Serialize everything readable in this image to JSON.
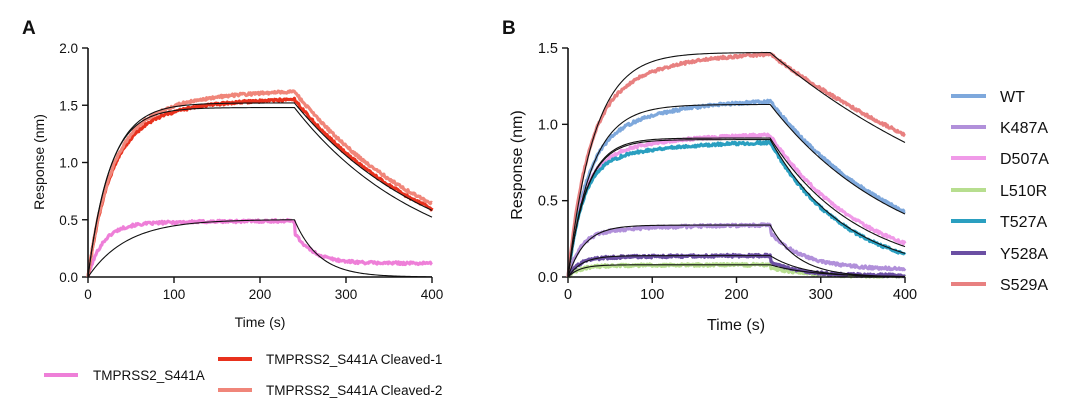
{
  "chart_data": [
    {
      "panel": "A",
      "type": "line",
      "xlabel": "Time (s)",
      "ylabel": "Response (nm)",
      "xlim": [
        0,
        400
      ],
      "ylim": [
        0,
        2.0
      ],
      "xticks": [
        0,
        100,
        200,
        300,
        400
      ],
      "yticks": [
        0.0,
        0.5,
        1.0,
        1.5,
        2.0
      ],
      "ytick_labels": [
        "0.0",
        "0.5",
        "1.0",
        "1.5",
        "2.0"
      ],
      "association_end": 240,
      "legend_position": "bottom",
      "series": [
        {
          "name": "TMPRSS2_S441A",
          "color": "#EE7FD8",
          "fast": 0.45,
          "fast_rate": 0.06,
          "slow": 0.04,
          "slow_rate": 0.01,
          "plateau": 0.49,
          "fit_plateau": 0.5,
          "fit_rate": 0.022,
          "dissoc_rate": 0.035,
          "drop": 0.1,
          "dissoc_rate_data": 0.045,
          "dissoc_floor": 0.12
        },
        {
          "name": "TMPRSS2_S441A Cleaved-1",
          "color": "#E8311D",
          "fast": 1.2,
          "fast_rate": 0.04,
          "slow": 0.35,
          "slow_rate": 0.012,
          "plateau": 1.55,
          "fit_plateau": 1.48,
          "fit_rate": 0.04,
          "dissoc_rate": 0.0065,
          "drop": 0.0,
          "dissoc_rate_data": 0.006,
          "dissoc_floor": 0.0
        },
        {
          "name": "TMPRSS2_S441A Cleaved-2",
          "color": "#F0867A",
          "fast": 1.2,
          "fast_rate": 0.04,
          "slow": 0.42,
          "slow_rate": 0.012,
          "plateau": 1.62,
          "fit_plateau": 1.52,
          "fit_rate": 0.038,
          "dissoc_rate": 0.006,
          "drop": 0.0,
          "dissoc_rate_data": 0.0058,
          "dissoc_floor": 0.0
        }
      ]
    },
    {
      "panel": "B",
      "type": "line",
      "xlabel": "Time (s)",
      "ylabel": "Response (nm)",
      "xlim": [
        0,
        400
      ],
      "ylim": [
        0,
        1.5
      ],
      "xticks": [
        0,
        100,
        200,
        300,
        400
      ],
      "yticks": [
        0.0,
        0.5,
        1.0,
        1.5
      ],
      "ytick_labels": [
        "0.0",
        "0.5",
        "1.0",
        "1.5"
      ],
      "association_end": 240,
      "legend_position": "right",
      "series": [
        {
          "name": "WT",
          "color": "#7EA8DC",
          "fast": 0.8,
          "fast_rate": 0.05,
          "slow": 0.35,
          "slow_rate": 0.012,
          "plateau": 1.15,
          "fit_plateau": 1.13,
          "fit_rate": 0.035,
          "dissoc_rate": 0.0063,
          "drop": 0.0,
          "dissoc_rate_data": 0.0062,
          "dissoc_floor": 0.0
        },
        {
          "name": "K487A",
          "color": "#B190DA",
          "fast": 0.28,
          "fast_rate": 0.07,
          "slow": 0.06,
          "slow_rate": 0.01,
          "plateau": 0.34,
          "fit_plateau": 0.34,
          "fit_rate": 0.05,
          "dissoc_rate": 0.03,
          "drop": 0.05,
          "dissoc_rate_data": 0.025,
          "dissoc_floor": 0.05
        },
        {
          "name": "D507A",
          "color": "#F09AE8",
          "fast": 0.72,
          "fast_rate": 0.06,
          "slow": 0.22,
          "slow_rate": 0.012,
          "plateau": 0.93,
          "fit_plateau": 0.91,
          "fit_rate": 0.045,
          "dissoc_rate": 0.0095,
          "drop": 0.0,
          "dissoc_rate_data": 0.009,
          "dissoc_floor": 0.0
        },
        {
          "name": "L510R",
          "color": "#B7DE8F",
          "fast": 0.07,
          "fast_rate": 0.08,
          "slow": 0.01,
          "slow_rate": 0.01,
          "plateau": 0.08,
          "fit_plateau": 0.08,
          "fit_rate": 0.07,
          "dissoc_rate": 0.02,
          "drop": 0.02,
          "dissoc_rate_data": 0.02,
          "dissoc_floor": 0.0
        },
        {
          "name": "T527A",
          "color": "#2A9FC0",
          "fast": 0.7,
          "fast_rate": 0.06,
          "slow": 0.18,
          "slow_rate": 0.012,
          "plateau": 0.88,
          "fit_plateau": 0.9,
          "fit_rate": 0.045,
          "dissoc_rate": 0.011,
          "drop": 0.0,
          "dissoc_rate_data": 0.011,
          "dissoc_floor": 0.0
        },
        {
          "name": "Y528A",
          "color": "#6B4FA3",
          "fast": 0.12,
          "fast_rate": 0.08,
          "slow": 0.02,
          "slow_rate": 0.01,
          "plateau": 0.14,
          "fit_plateau": 0.14,
          "fit_rate": 0.06,
          "dissoc_rate": 0.025,
          "drop": 0.04,
          "dissoc_rate_data": 0.03,
          "dissoc_floor": 0.01
        },
        {
          "name": "S529A",
          "color": "#E88080",
          "fast": 1.05,
          "fast_rate": 0.045,
          "slow": 0.42,
          "slow_rate": 0.012,
          "plateau": 1.46,
          "fit_plateau": 1.47,
          "fit_rate": 0.032,
          "dissoc_rate": 0.0032,
          "drop": 0.0,
          "dissoc_rate_data": 0.0028,
          "dissoc_floor": 0.0
        }
      ]
    }
  ]
}
